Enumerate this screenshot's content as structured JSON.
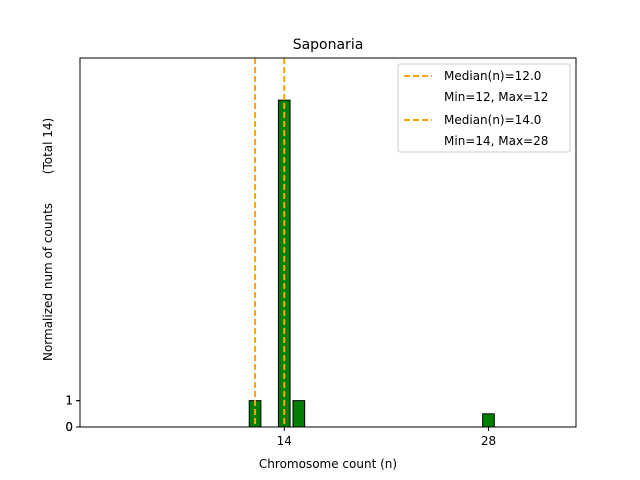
{
  "chart_data": {
    "type": "bar",
    "title": "Saponaria",
    "xlabel": "Chromosome count (n)",
    "ylabel": "Normalized num of counts",
    "ylabel_suffix": "(Total 14)",
    "xlim": [
      0,
      34
    ],
    "ylim": [
      0,
      14
    ],
    "xticks": [
      14,
      28
    ],
    "yticks": [
      0,
      1
    ],
    "yticks_overlay": [
      0,
      1
    ],
    "bars": [
      {
        "x": 12,
        "value": 1
      },
      {
        "x": 14,
        "value": 12.4
      },
      {
        "x": 15,
        "value": 1
      },
      {
        "x": 28,
        "value": 0.5
      }
    ],
    "bar_width": 0.8,
    "bar_color": "#008000",
    "bar_edge_color": "#000000",
    "median_lines": [
      {
        "x": 12.0,
        "color": "#FFA500"
      },
      {
        "x": 14.0,
        "color": "#FFA500"
      }
    ],
    "legend": [
      {
        "label": "Median(n)=12.0",
        "sublabel": "Min=12, Max=12",
        "color": "#FFA500"
      },
      {
        "label": "Median(n)=14.0",
        "sublabel": "Min=14, Max=28",
        "color": "#FFA500"
      }
    ],
    "legend_position": "top-right"
  }
}
